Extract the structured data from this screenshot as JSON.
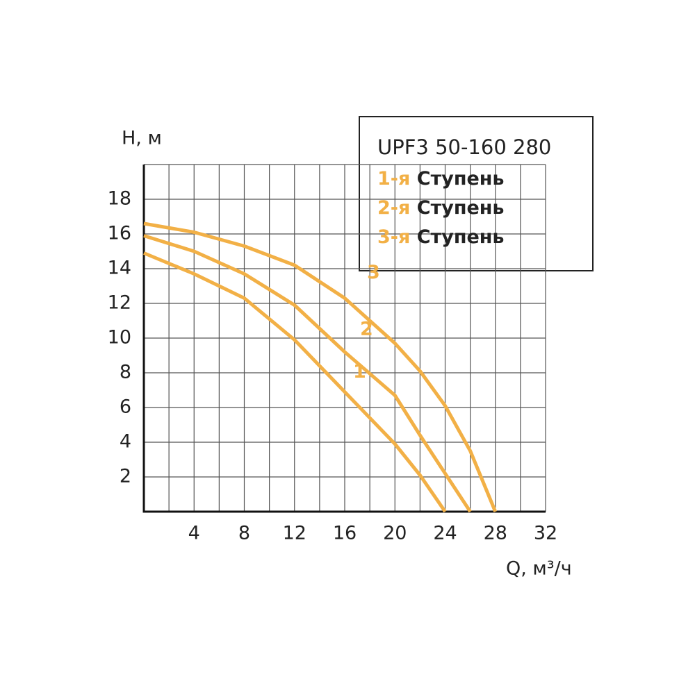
{
  "chart_data": {
    "type": "line",
    "title": "UPF3 50-160 280",
    "x_label": "Q, м³/ч",
    "y_label": "H, м",
    "xlim": [
      0,
      32
    ],
    "ylim": [
      0,
      20
    ],
    "xticks": [
      4,
      8,
      12,
      16,
      20,
      24,
      28,
      32
    ],
    "yticks": [
      2,
      4,
      6,
      8,
      10,
      12,
      14,
      16,
      18
    ],
    "xgrid": [
      0,
      2,
      4,
      6,
      8,
      10,
      12,
      14,
      16,
      18,
      20,
      22,
      24,
      26,
      28,
      30,
      32
    ],
    "ygrid": [
      0,
      2,
      4,
      6,
      8,
      10,
      12,
      14,
      16,
      18,
      20
    ],
    "grid": true,
    "series": [
      {
        "name": "1-я",
        "legend_suffix": "Ступень",
        "label": "1",
        "color": "#f2b046",
        "x": [
          0,
          4,
          8,
          12,
          16,
          20,
          22,
          24
        ],
        "values": [
          14.9,
          13.7,
          12.3,
          9.9,
          6.9,
          3.9,
          2.1,
          0
        ]
      },
      {
        "name": "2-я",
        "legend_suffix": "Ступень",
        "label": "2",
        "color": "#f2b046",
        "x": [
          0,
          4,
          8,
          12,
          16,
          20,
          22,
          24,
          26
        ],
        "values": [
          15.9,
          15.0,
          13.7,
          11.9,
          9.2,
          6.7,
          4.4,
          2.2,
          0
        ]
      },
      {
        "name": "3-я",
        "legend_suffix": "Ступень",
        "label": "3",
        "color": "#f2b046",
        "x": [
          0,
          4,
          8,
          12,
          16,
          20,
          22,
          24,
          26,
          28
        ],
        "values": [
          16.6,
          16.1,
          15.3,
          14.2,
          12.3,
          9.7,
          8.1,
          6.1,
          3.5,
          0
        ]
      }
    ]
  }
}
